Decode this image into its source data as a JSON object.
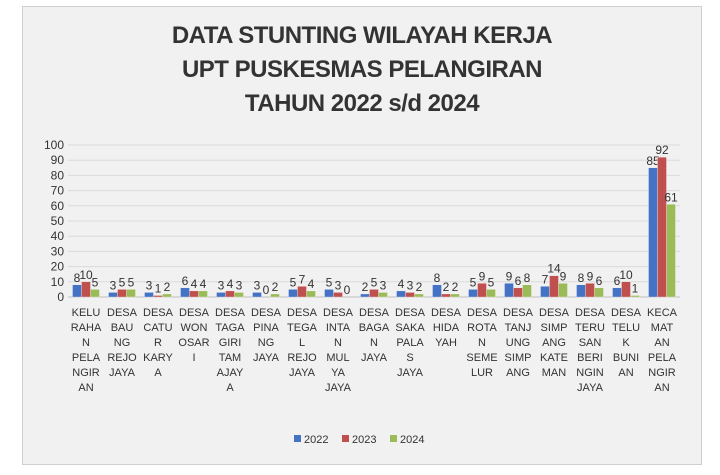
{
  "chart_data": {
    "type": "bar",
    "title_lines": [
      "DATA STUNTING WILAYAH KERJA",
      "UPT PUSKESMAS PELANGIRAN",
      "TAHUN 2022 s/d 2024"
    ],
    "ylim": [
      0,
      100
    ],
    "yticks": [
      0,
      10,
      20,
      30,
      40,
      50,
      60,
      70,
      80,
      90,
      100
    ],
    "grid": true,
    "legend_position": "bottom",
    "categories": [
      [
        "KELU",
        "RAHA",
        "N",
        "PELA",
        "NGIR",
        "AN"
      ],
      [
        "DESA",
        "BAU",
        "NG",
        "REJO",
        "JAYA"
      ],
      [
        "DESA",
        "CATU",
        "R",
        "KARY",
        "A"
      ],
      [
        "DESA",
        "WON",
        "OSAR",
        "I"
      ],
      [
        "DESA",
        "TAGA",
        "GIRI",
        "TAM",
        "AJAY",
        "A"
      ],
      [
        "DESA",
        "PINA",
        "NG",
        "JAYA"
      ],
      [
        "DESA",
        "TEGA",
        "L",
        "REJO",
        "JAYA"
      ],
      [
        "DESA",
        "INTA",
        "N",
        "MUL",
        "YA",
        "JAYA"
      ],
      [
        "DESA",
        "BAGA",
        "N",
        "JAYA"
      ],
      [
        "DESA",
        "SAKA",
        "PALA",
        "S",
        "JAYA"
      ],
      [
        "DESA",
        "HIDA",
        "YAH"
      ],
      [
        "DESA",
        "ROTA",
        "N",
        "SEME",
        "LUR"
      ],
      [
        "DESA",
        "TANJ",
        "UNG",
        "SIMP",
        "ANG"
      ],
      [
        "DESA",
        "SIMP",
        "ANG",
        "KATE",
        "MAN"
      ],
      [
        "DESA",
        "TERU",
        "SAN",
        "BERI",
        "NGIN",
        "JAYA"
      ],
      [
        "DESA",
        "TELU",
        "K",
        "BUNI",
        "AN"
      ],
      [
        "KECA",
        "MAT",
        "AN",
        "PELA",
        "NGIR",
        "AN"
      ]
    ],
    "series": [
      {
        "name": "2022",
        "color": "#4472c4",
        "values": [
          8,
          3,
          3,
          6,
          3,
          3,
          5,
          5,
          2,
          4,
          8,
          5,
          9,
          7,
          8,
          6,
          85
        ]
      },
      {
        "name": "2023",
        "color": "#c0504d",
        "values": [
          10,
          5,
          1,
          4,
          4,
          0,
          7,
          3,
          5,
          3,
          2,
          9,
          6,
          14,
          9,
          10,
          92
        ]
      },
      {
        "name": "2024",
        "color": "#9bbb59",
        "values": [
          5,
          5,
          2,
          4,
          3,
          2,
          4,
          0,
          3,
          2,
          2,
          5,
          8,
          9,
          6,
          1,
          61
        ]
      }
    ]
  }
}
